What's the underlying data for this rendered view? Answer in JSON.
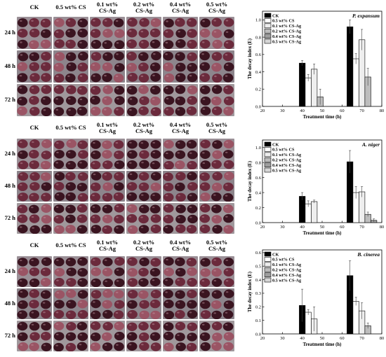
{
  "photo_panels": [
    {
      "columns": [
        "CK",
        "0.5 wt% CS",
        "0.1 wt%\nCS-Ag",
        "0.2 wt%\nCS-Ag",
        "0.4 wt%\nCS-Ag",
        "0.5 wt%\nCS-Ag"
      ],
      "rows": [
        "24 h",
        "48 h",
        "72 h"
      ]
    },
    {
      "columns": [
        "CK",
        "0.5 wt% CS",
        "0.1 wt%\nCS-Ag",
        "0.2 wt%\nCS-Ag",
        "0.4 wt%\nCS-Ag",
        "0.5 wt%\nCS-Ag"
      ],
      "rows": [
        "24 h",
        "48 h",
        "72 h"
      ]
    },
    {
      "columns": [
        "CK",
        "0.5 wt% CS",
        "0.1 wt%\nCS-Ag",
        "0.2 wt%\nCS-Ag",
        "0.4 wt%\nCS-Ag",
        "0.5 wt%\nCS-Ag"
      ],
      "rows": [
        "24 h",
        "48 h",
        "72 h"
      ]
    }
  ],
  "colors": {
    "fruit_dark": "#3a1420",
    "fruit_mid": "#6b2a3c",
    "fruit_light": "#9a5464",
    "background_photo": "#8a8288",
    "series_fills": [
      "#000000",
      "#ffffff",
      "#eeeeee",
      "#bdbdbd",
      "#9e9e9e",
      "#d6d6d6"
    ]
  },
  "chart_data": [
    {
      "type": "bar",
      "title": "P. expansum",
      "xlabel": "Treatment time (h)",
      "ylabel": "The decay index (E)",
      "xlim": [
        20,
        80
      ],
      "ylim": [
        0,
        1.1
      ],
      "xticks": [
        20,
        30,
        40,
        50,
        60,
        70,
        80
      ],
      "yticks": [
        "0.0",
        "0.2",
        "0.4",
        "0.6",
        "0.8",
        "1.0"
      ],
      "legend_position": "top-left",
      "series": [
        {
          "name": "CK",
          "x": [
            40,
            64
          ],
          "values": [
            0.5,
            0.92
          ],
          "err": [
            0.03,
            0.08
          ]
        },
        {
          "name": "0.5 wt% CS",
          "x": [
            43,
            67
          ],
          "values": [
            0.33,
            0.55
          ],
          "err": [
            0.04,
            0.06
          ]
        },
        {
          "name": "0.1 wt% CS-Ag",
          "x": [
            46,
            70
          ],
          "values": [
            0.43,
            0.77
          ],
          "err": [
            0.06,
            0.12
          ]
        },
        {
          "name": "0.2 wt% CS-Ag",
          "x": [
            49,
            73
          ],
          "values": [
            0.11,
            0.34
          ],
          "err": [
            0.09,
            0.1
          ]
        },
        {
          "name": "0.4 wt% CS-Ag",
          "x": [],
          "values": [],
          "err": []
        },
        {
          "name": "0.5 wt% CS-Ag",
          "x": [],
          "values": [],
          "err": []
        }
      ]
    },
    {
      "type": "bar",
      "title": "A. niger",
      "xlabel": "Treatment time (h)",
      "ylabel": "The decay index (E)",
      "xlim": [
        20,
        80
      ],
      "ylim": [
        0,
        1.1
      ],
      "xticks": [
        20,
        30,
        40,
        50,
        60,
        70,
        80
      ],
      "yticks": [
        "0.0",
        "0.2",
        "0.4",
        "0.6",
        "0.8",
        "1.0"
      ],
      "legend_position": "top-left",
      "series": [
        {
          "name": "CK",
          "x": [
            40,
            64
          ],
          "values": [
            0.35,
            0.81
          ],
          "err": [
            0.05,
            0.15
          ]
        },
        {
          "name": "0.5 wt% CS",
          "x": [
            43,
            67
          ],
          "values": [
            0.25,
            0.4
          ],
          "err": [
            0.04,
            0.08
          ]
        },
        {
          "name": "0.1 wt% CS-Ag",
          "x": [
            46,
            70
          ],
          "values": [
            0.28,
            0.41
          ],
          "err": [
            0.02,
            0.07
          ]
        },
        {
          "name": "0.2 wt% CS-Ag",
          "x": [
            73
          ],
          "values": [
            0.11
          ],
          "err": [
            0.03
          ]
        },
        {
          "name": "0.4 wt% CS-Ag",
          "x": [
            76
          ],
          "values": [
            0.03
          ],
          "err": [
            0.02
          ]
        },
        {
          "name": "0.5 wt% CS-Ag",
          "x": [],
          "values": [],
          "err": []
        }
      ]
    },
    {
      "type": "bar",
      "title": "B. cinerea",
      "xlabel": "Treatment time (h)",
      "ylabel": "The decay index (E)",
      "xlim": [
        20,
        80
      ],
      "ylim": [
        0,
        0.62
      ],
      "xticks": [
        20,
        30,
        40,
        50,
        60,
        70,
        80
      ],
      "yticks": [
        "0.0",
        "0.1",
        "0.2",
        "0.3",
        "0.4",
        "0.5",
        "0.6"
      ],
      "legend_position": "top-left",
      "series": [
        {
          "name": "CK",
          "x": [
            40,
            64
          ],
          "values": [
            0.21,
            0.43
          ],
          "err": [
            0.12,
            0.11
          ]
        },
        {
          "name": "0.5 wt% CS",
          "x": [
            43,
            67
          ],
          "values": [
            0.16,
            0.24
          ],
          "err": [
            0.02,
            0.03
          ]
        },
        {
          "name": "0.1 wt% CS-Ag",
          "x": [
            46,
            70
          ],
          "values": [
            0.11,
            0.17
          ],
          "err": [
            0.09,
            0.06
          ]
        },
        {
          "name": "0.2 wt% CS-Ag",
          "x": [
            73
          ],
          "values": [
            0.06
          ],
          "err": [
            0.02
          ]
        },
        {
          "name": "0.4 wt% CS-Ag",
          "x": [],
          "values": [],
          "err": []
        },
        {
          "name": "0.5 wt% CS-Ag",
          "x": [],
          "values": [],
          "err": []
        }
      ]
    }
  ]
}
